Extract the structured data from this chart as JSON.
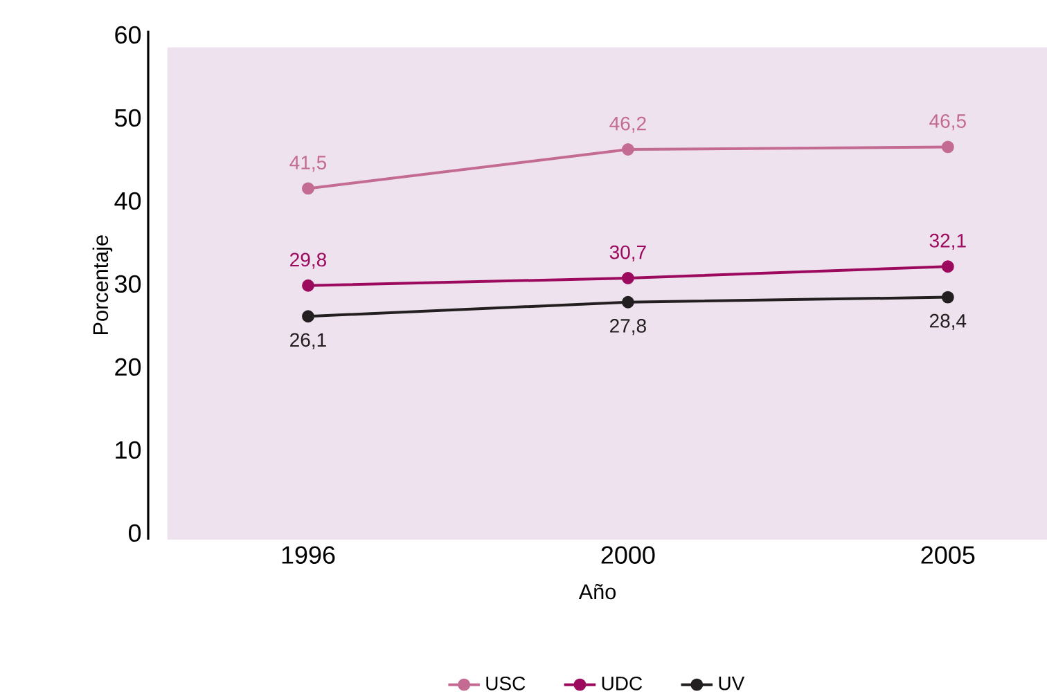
{
  "chart_data": {
    "type": "line",
    "xlabel": "Año",
    "ylabel": "Porcentaje",
    "categories": [
      "1996",
      "2000",
      "2005"
    ],
    "series": [
      {
        "name": "USC",
        "color": "#c46b93",
        "values": [
          41.5,
          46.2,
          46.5
        ],
        "value_labels": [
          "41,5",
          "46,2",
          "46,5"
        ]
      },
      {
        "name": "UDC",
        "color": "#9c0a5e",
        "values": [
          29.8,
          30.7,
          32.1
        ],
        "value_labels": [
          "29,8",
          "30,7",
          "32,1"
        ]
      },
      {
        "name": "UV",
        "color": "#231f20",
        "values": [
          26.1,
          27.8,
          28.4
        ],
        "value_labels": [
          "26,1",
          "27,8",
          "28,4"
        ]
      }
    ],
    "ylim": [
      0,
      60
    ],
    "yticks": [
      0,
      10,
      20,
      30,
      40,
      50,
      60
    ],
    "marker": "circle",
    "line_style": "solid",
    "legend": "bottom",
    "grid": false
  }
}
